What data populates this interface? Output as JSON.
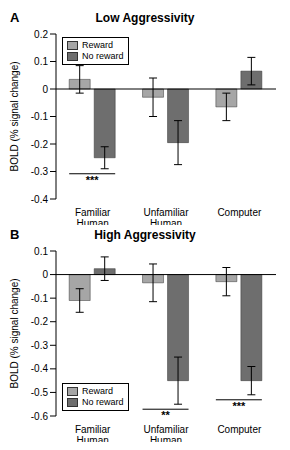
{
  "chart_data": [
    {
      "type": "bar",
      "label": "A",
      "title": "Low Aggressivity",
      "y_label": "BOLD (% signal change)",
      "categories": [
        "Familiar Human",
        "Unfamiliar Human",
        "Computer"
      ],
      "series": [
        {
          "name": "Reward",
          "color": "#a6a6a6",
          "values": [
            0.035,
            -0.03,
            -0.065
          ],
          "error": [
            0.05,
            0.07,
            0.05
          ]
        },
        {
          "name": "No reward",
          "color": "#6e6e6e",
          "values": [
            -0.25,
            -0.195,
            0.065
          ],
          "error": [
            0.04,
            0.08,
            0.05
          ]
        }
      ],
      "ylim": [
        -0.4,
        0.2
      ],
      "yticks": [
        -0.4,
        -0.3,
        -0.2,
        -0.1,
        0,
        0.1,
        0.2
      ],
      "legend": "upper left",
      "annotations": [
        {
          "category": "Familiar Human",
          "text": "***"
        }
      ]
    },
    {
      "type": "bar",
      "label": "B",
      "title": "High Aggressivity",
      "y_label": "BOLD (% signal change)",
      "categories": [
        "Familiar Human",
        "Unfamiliar Human",
        "Computer"
      ],
      "series": [
        {
          "name": "Reward",
          "color": "#a6a6a6",
          "values": [
            -0.11,
            -0.035,
            -0.03
          ],
          "error": [
            0.05,
            0.08,
            0.06
          ]
        },
        {
          "name": "No reward",
          "color": "#6e6e6e",
          "values": [
            0.025,
            -0.45,
            -0.45
          ],
          "error": [
            0.05,
            0.1,
            0.06
          ]
        }
      ],
      "ylim": [
        -0.6,
        0.1
      ],
      "yticks": [
        -0.6,
        -0.5,
        -0.4,
        -0.3,
        -0.2,
        -0.1,
        0,
        0.1
      ],
      "legend": "lower left",
      "annotations": [
        {
          "category": "Unfamiliar Human",
          "text": "**"
        },
        {
          "category": "Computer",
          "text": "***"
        }
      ]
    }
  ]
}
